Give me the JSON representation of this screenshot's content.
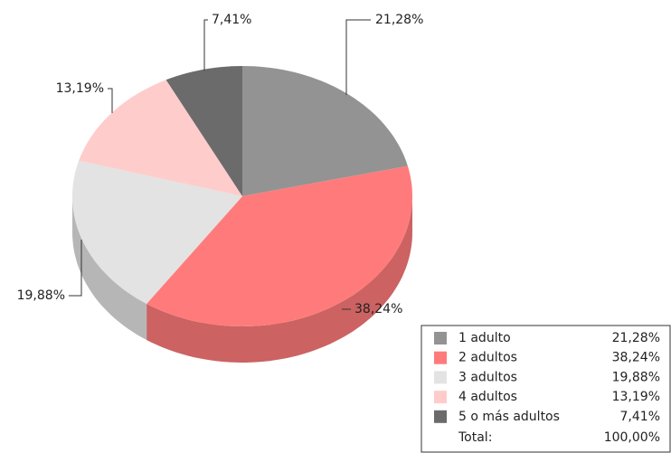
{
  "chart_data": {
    "type": "pie3d",
    "categories": [
      "1 adulto",
      "2 adultos",
      "3 adultos",
      "4 adultos",
      "5 o más adultos"
    ],
    "values": [
      21.28,
      38.24,
      19.88,
      13.19,
      7.41
    ],
    "value_labels": [
      "21,28%",
      "38,24%",
      "19,88%",
      "13,19%",
      "7,41%"
    ],
    "colors": [
      "#939393",
      "#ff7b7b",
      "#e3e3e3",
      "#ffcccc",
      "#6b6b6b"
    ],
    "legend": "bottom-right",
    "total": {
      "label": "Total:",
      "value": "100,00%"
    }
  }
}
